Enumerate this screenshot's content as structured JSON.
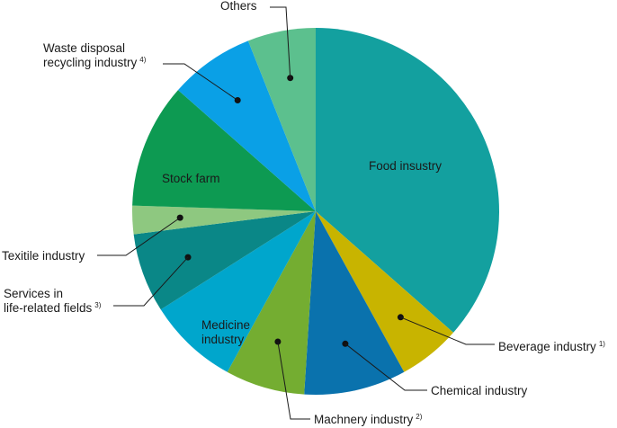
{
  "chart_data": {
    "type": "pie",
    "title": "",
    "start_angle_deg": 0,
    "direction": "clockwise",
    "slices": [
      {
        "label": "Food insustry",
        "note": "",
        "value": 36.5,
        "color": "#13a09f"
      },
      {
        "label": "Beverage industry",
        "note": "1)",
        "value": 5.5,
        "color": "#c8b400"
      },
      {
        "label": "Chemical industry",
        "note": "",
        "value": 9.0,
        "color": "#0a72ad"
      },
      {
        "label": "Machnery industry",
        "note": "2)",
        "value": 7.0,
        "color": "#74ad31"
      },
      {
        "label": "Medicine industry",
        "note": "",
        "value": 8.0,
        "color": "#00a6cc"
      },
      {
        "label": "Services in life-related fields",
        "note": "3)",
        "value": 7.0,
        "color": "#0a8787"
      },
      {
        "label": "Texitile industry",
        "note": "",
        "value": 2.5,
        "color": "#8ec880"
      },
      {
        "label": "Stock farm",
        "note": "",
        "value": 11.0,
        "color": "#0d9a52"
      },
      {
        "label": "Waste disposal recycling industry",
        "note": "4)",
        "value": 7.5,
        "color": "#0aa0e6"
      },
      {
        "label": "Others",
        "note": "",
        "value": 6.0,
        "color": "#5cc08e"
      }
    ]
  }
}
